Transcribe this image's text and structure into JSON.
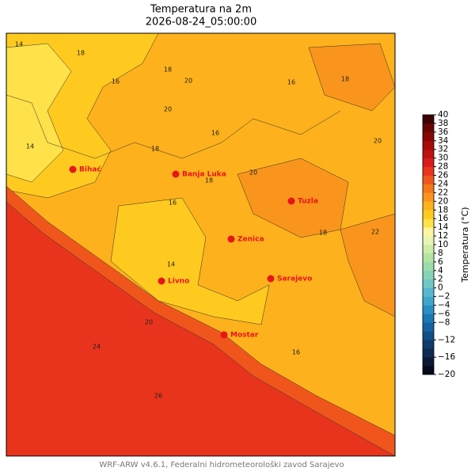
{
  "title": "Temperatura na 2m",
  "subtitle": "2026-08-24_05:00:00",
  "cities": [
    {
      "name": "Bihać"
    },
    {
      "name": "Banja Luka"
    },
    {
      "name": "Tuzla"
    },
    {
      "name": "Zenica"
    },
    {
      "name": "Livno"
    },
    {
      "name": "Sarajevo"
    },
    {
      "name": "Mostar"
    }
  ],
  "contour_labels": [
    14,
    18,
    16,
    18,
    20,
    16,
    18,
    14,
    20,
    16,
    18,
    22,
    16,
    20,
    24,
    26,
    20,
    18,
    14,
    16,
    18,
    20
  ],
  "colorbar": {
    "label": "Temperatura (°C)",
    "lim": [
      -20,
      40
    ],
    "ticks": [
      {
        "value": -20,
        "label": "−20"
      },
      {
        "value": -16,
        "label": "−16"
      },
      {
        "value": -12,
        "label": "−12"
      },
      {
        "value": -8,
        "label": "−8"
      },
      {
        "value": -6,
        "label": "−6"
      },
      {
        "value": -4,
        "label": "−4"
      },
      {
        "value": -2,
        "label": "−2"
      },
      0,
      2,
      4,
      6,
      8,
      10,
      12,
      14,
      16,
      18,
      20,
      22,
      24,
      26,
      28,
      30,
      32,
      34,
      36,
      38,
      40
    ],
    "colors": [
      "#050a1a",
      "#0a1a35",
      "#0d2a50",
      "#103b6a",
      "#124f86",
      "#1563a0",
      "#1a78b5",
      "#2a8fc4",
      "#3ea6cc",
      "#56b9cf",
      "#6fc8c5",
      "#86d3b8",
      "#9cdcab",
      "#b4e4a4",
      "#cdeda8",
      "#e8f5b3",
      "#fff5a0",
      "#ffe14a",
      "#ffca1f",
      "#fdb11c",
      "#f9951c",
      "#f5771c",
      "#f0561c",
      "#e8341c",
      "#d71b1b",
      "#bf1111",
      "#a40b0b",
      "#870707",
      "#690404",
      "#3d0202"
    ]
  },
  "footer": "WRF-ARW v4.6.1, Federalni hidrometeorološki zavod Sarajevo"
}
